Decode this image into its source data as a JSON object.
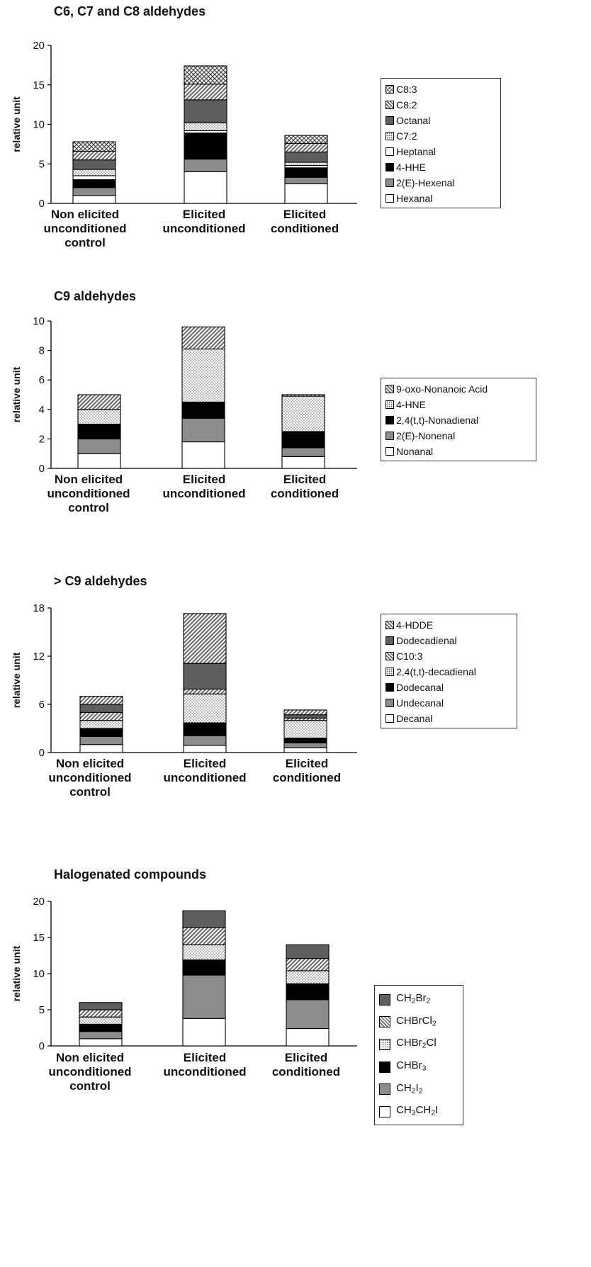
{
  "chart_data": [
    {
      "type": "bar",
      "stacked": true,
      "title": "C6, C7 and C8 aldehydes",
      "ylabel": "relative unit",
      "ylim": [
        0,
        20
      ],
      "yticks": [
        "0",
        "5",
        "10",
        "15",
        "20"
      ],
      "categories": [
        [
          "Non elicited",
          "unconditioned",
          "control"
        ],
        [
          "Elicited",
          "unconditioned"
        ],
        [
          "Elicited",
          "conditioned"
        ]
      ],
      "series": [
        {
          "name": "Hexanal",
          "values": [
            1.0,
            4.0,
            2.5
          ],
          "pattern": "white"
        },
        {
          "name": "2(E)-Hexenal",
          "values": [
            1.0,
            1.6,
            0.8
          ],
          "pattern": "gray"
        },
        {
          "name": "4-HHE",
          "values": [
            1.0,
            3.3,
            1.2
          ],
          "pattern": "black"
        },
        {
          "name": "Heptanal",
          "values": [
            0.5,
            0.3,
            0.3
          ],
          "pattern": "white"
        },
        {
          "name": "C7:2",
          "values": [
            0.8,
            1.0,
            0.4
          ],
          "pattern": "dots"
        },
        {
          "name": "Octanal",
          "values": [
            1.2,
            2.9,
            1.3
          ],
          "pattern": "darkgray"
        },
        {
          "name": "C8:2",
          "values": [
            1.1,
            2.0,
            1.1
          ],
          "pattern": "hatch"
        },
        {
          "name": "C8:3",
          "values": [
            1.2,
            2.3,
            1.0
          ],
          "pattern": "cross"
        }
      ],
      "legend_order": [
        "C8:3",
        "C8:2",
        "Octanal",
        "C7:2",
        "Heptanal",
        "4-HHE",
        "2(E)-Hexenal",
        "Hexanal"
      ]
    },
    {
      "type": "bar",
      "stacked": true,
      "title": "C9 aldehydes",
      "ylabel": "relative unit",
      "ylim": [
        0,
        10
      ],
      "yticks": [
        "0",
        "2",
        "4",
        "6",
        "8",
        "10"
      ],
      "categories": [
        [
          "Non elicited",
          "unconditioned",
          "control"
        ],
        [
          "Elicited",
          "unconditioned"
        ],
        [
          "Elicited",
          "conditioned"
        ]
      ],
      "series": [
        {
          "name": "Nonanal",
          "values": [
            1.0,
            1.8,
            0.8
          ],
          "pattern": "white"
        },
        {
          "name": "2(E)-Nonenal",
          "values": [
            1.0,
            1.6,
            0.6
          ],
          "pattern": "gray"
        },
        {
          "name": "2,4(t,t)-Nonadienal",
          "values": [
            1.0,
            1.1,
            1.1
          ],
          "pattern": "black"
        },
        {
          "name": "4-HNE",
          "values": [
            1.0,
            3.6,
            2.4
          ],
          "pattern": "dots"
        },
        {
          "name": "9-oxo-Nonanoic Acid",
          "values": [
            1.0,
            1.5,
            0.1
          ],
          "pattern": "hatch"
        }
      ],
      "legend_order": [
        "9-oxo-Nonanoic Acid",
        "4-HNE",
        "2,4(t,t)-Nonadienal",
        "2(E)-Nonenal",
        "Nonanal"
      ]
    },
    {
      "type": "bar",
      "stacked": true,
      "title": "> C9 aldehydes",
      "ylabel": "relative unit",
      "ylim": [
        0,
        18
      ],
      "yticks": [
        "0",
        "6",
        "12",
        "18"
      ],
      "categories": [
        [
          "Non elicited",
          "unconditioned",
          "control"
        ],
        [
          "Elicited",
          "unconditioned"
        ],
        [
          "Elicited",
          "conditioned"
        ]
      ],
      "series": [
        {
          "name": "Decanal",
          "values": [
            1.0,
            0.9,
            0.6
          ],
          "pattern": "white"
        },
        {
          "name": "Undecanal",
          "values": [
            1.0,
            1.2,
            0.6
          ],
          "pattern": "gray"
        },
        {
          "name": "Dodecanal",
          "values": [
            1.0,
            1.6,
            0.6
          ],
          "pattern": "black"
        },
        {
          "name": "2,4(t,t)-decadienal",
          "values": [
            1.0,
            3.6,
            2.2
          ],
          "pattern": "dots"
        },
        {
          "name": "C10:3",
          "values": [
            1.0,
            0.6,
            0.3
          ],
          "pattern": "hatch"
        },
        {
          "name": "Dodecadienal",
          "values": [
            1.0,
            3.2,
            0.4
          ],
          "pattern": "darkgray"
        },
        {
          "name": "4-HDDE",
          "values": [
            1.0,
            6.2,
            0.6
          ],
          "pattern": "hatch"
        }
      ],
      "legend_order": [
        "4-HDDE",
        "Dodecadienal",
        "C10:3",
        "2,4(t,t)-decadienal",
        "Dodecanal",
        "Undecanal",
        "Decanal"
      ]
    },
    {
      "type": "bar",
      "stacked": true,
      "title": "Halogenated compounds",
      "ylabel": "relative unit",
      "ylim": [
        0,
        20
      ],
      "yticks": [
        "0",
        "5",
        "10",
        "15",
        "20"
      ],
      "categories": [
        [
          "Non elicited",
          "unconditioned",
          "control"
        ],
        [
          "Elicited",
          "unconditioned"
        ],
        [
          "Elicited",
          "conditioned"
        ]
      ],
      "series": [
        {
          "name": "CH3CH2I",
          "label_parts": [
            [
              "CH",
              ""
            ],
            [
              "3",
              "sub"
            ],
            [
              "CH",
              ""
            ],
            [
              "2",
              "sub"
            ],
            [
              "I",
              ""
            ]
          ],
          "values": [
            1.0,
            3.8,
            2.4
          ],
          "pattern": "white"
        },
        {
          "name": "CH2I2",
          "label_parts": [
            [
              "CH",
              ""
            ],
            [
              "2",
              "sub"
            ],
            [
              "I",
              ""
            ],
            [
              "2",
              "sub"
            ]
          ],
          "values": [
            1.0,
            6.0,
            4.0
          ],
          "pattern": "gray"
        },
        {
          "name": "CHBr3",
          "label_parts": [
            [
              "CHBr",
              ""
            ],
            [
              "3",
              "sub"
            ]
          ],
          "values": [
            1.0,
            2.1,
            2.2
          ],
          "pattern": "black"
        },
        {
          "name": "CHBr2Cl",
          "label_parts": [
            [
              "CHBr",
              ""
            ],
            [
              "2",
              "sub"
            ],
            [
              "Cl",
              ""
            ]
          ],
          "values": [
            1.0,
            2.1,
            1.8
          ],
          "pattern": "dots"
        },
        {
          "name": "CHBrCl2",
          "label_parts": [
            [
              "CHBrCl",
              ""
            ],
            [
              "2",
              "sub"
            ]
          ],
          "values": [
            1.0,
            2.4,
            1.7
          ],
          "pattern": "hatch"
        },
        {
          "name": "CH2Br2",
          "label_parts": [
            [
              "CH",
              ""
            ],
            [
              "2",
              "sub"
            ],
            [
              "Br",
              ""
            ],
            [
              "2",
              "sub"
            ]
          ],
          "values": [
            1.0,
            2.3,
            1.9
          ],
          "pattern": "darkgray"
        }
      ],
      "legend_order": [
        "CH2Br2",
        "CHBrCl2",
        "CHBr2Cl",
        "CHBr3",
        "CH2I2",
        "CH3CH2I"
      ]
    }
  ]
}
